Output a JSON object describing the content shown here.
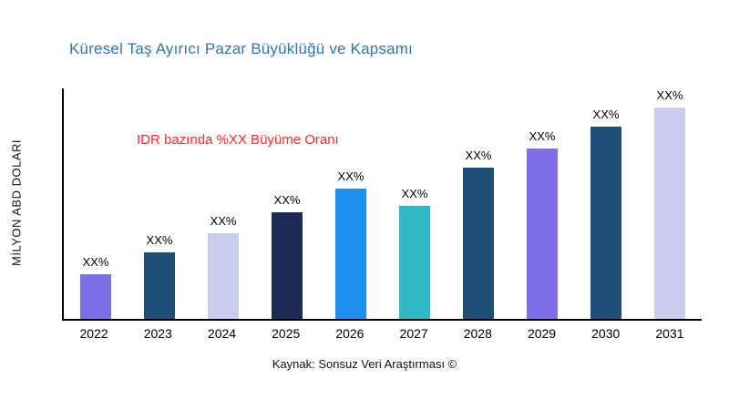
{
  "chart": {
    "title": "Küresel Taş Ayırıcı Pazar Büyüklüğü ve Kapsamı",
    "annotation": "IDR bazında %XX Büyüme Oranı",
    "source": "Kaynak: Sonsuz Veri Araştırması ©",
    "title_color": "#2E75B6",
    "annotation_color": "#FF2A2A"
  },
  "chart_data": {
    "type": "bar",
    "title": "Küresel Taş Ayırıcı Pazar Büyüklüğü ve Kapsamı",
    "xlabel": "",
    "ylabel": "MİLYON ABD DOLARI",
    "categories": [
      "2022",
      "2023",
      "2024",
      "2025",
      "2026",
      "2027",
      "2028",
      "2029",
      "2030",
      "2031"
    ],
    "values": [
      21,
      31,
      40,
      50,
      61,
      53,
      71,
      80,
      90,
      100
    ],
    "bar_labels": [
      "XX%",
      "XX%",
      "XX%",
      "XX%",
      "XX%",
      "XX%",
      "XX%",
      "XX%",
      "XX%",
      "XX%"
    ],
    "bar_colors": [
      "#7C6FE8",
      "#1F4E79",
      "#C9CCEF",
      "#1B2A57",
      "#1E8FF0",
      "#2FB9C7",
      "#1F4E79",
      "#7C6FE8",
      "#1F4E79",
      "#C9CCEF"
    ],
    "ylim": [
      0,
      108
    ],
    "grid": false,
    "legend": false,
    "note": "Bar values are relative estimates read from bar heights; data labels on chart show XX% placeholders"
  }
}
